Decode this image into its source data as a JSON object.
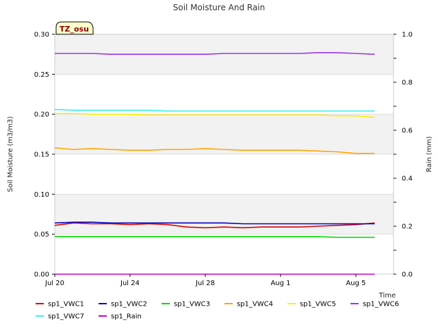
{
  "chart_data": {
    "type": "line",
    "title": "Soil Moisture And Rain",
    "badge": "TZ_osu",
    "xlabel": "Time",
    "ylabel": "Soil Moisture (m3/m3)",
    "y2label": "Rain (mm)",
    "xlim": [
      "2023-07-20",
      "2023-08-07"
    ],
    "ylim": [
      0.0,
      0.3
    ],
    "y2lim": [
      0.0,
      1.0
    ],
    "x_ticks": [
      {
        "date": "2023-07-20",
        "label": "Jul 20"
      },
      {
        "date": "2023-07-24",
        "label": "Jul 24"
      },
      {
        "date": "2023-07-28",
        "label": "Jul 28"
      },
      {
        "date": "2023-08-01",
        "label": "Aug 1"
      },
      {
        "date": "2023-08-05",
        "label": "Aug 5"
      }
    ],
    "y_ticks": [
      "0.00",
      "0.05",
      "0.10",
      "0.15",
      "0.20",
      "0.25",
      "0.30"
    ],
    "y2_ticks": [
      "0.0",
      "0.2",
      "0.4",
      "0.6",
      "0.8",
      "1.0"
    ],
    "grid": true,
    "legend_position": "bottom",
    "x": [
      "2023-07-20",
      "2023-07-21",
      "2023-07-22",
      "2023-07-23",
      "2023-07-24",
      "2023-07-25",
      "2023-07-26",
      "2023-07-27",
      "2023-07-28",
      "2023-07-29",
      "2023-07-30",
      "2023-07-31",
      "2023-08-01",
      "2023-08-02",
      "2023-08-03",
      "2023-08-04",
      "2023-08-05",
      "2023-08-06"
    ],
    "series": [
      {
        "name": "sp1_VWC1",
        "color": "#dd0000",
        "axis": "left",
        "values": [
          0.061,
          0.064,
          0.063,
          0.063,
          0.062,
          0.063,
          0.062,
          0.059,
          0.058,
          0.059,
          0.058,
          0.059,
          0.059,
          0.059,
          0.06,
          0.061,
          0.062,
          0.064
        ]
      },
      {
        "name": "sp1_VWC2",
        "color": "#0000cc",
        "axis": "left",
        "values": [
          0.064,
          0.065,
          0.065,
          0.064,
          0.064,
          0.064,
          0.064,
          0.064,
          0.064,
          0.064,
          0.063,
          0.063,
          0.063,
          0.063,
          0.063,
          0.063,
          0.063,
          0.063
        ]
      },
      {
        "name": "sp1_VWC3",
        "color": "#00dd00",
        "axis": "left",
        "values": [
          0.047,
          0.047,
          0.047,
          0.047,
          0.047,
          0.047,
          0.047,
          0.047,
          0.047,
          0.047,
          0.047,
          0.047,
          0.047,
          0.047,
          0.047,
          0.046,
          0.046,
          0.046
        ]
      },
      {
        "name": "sp1_VWC4",
        "color": "#ffa500",
        "axis": "left",
        "values": [
          0.158,
          0.156,
          0.157,
          0.156,
          0.155,
          0.155,
          0.156,
          0.156,
          0.157,
          0.156,
          0.155,
          0.155,
          0.155,
          0.155,
          0.154,
          0.153,
          0.151,
          0.151
        ]
      },
      {
        "name": "sp1_VWC5",
        "color": "#ffee00",
        "axis": "left",
        "values": [
          0.201,
          0.201,
          0.2,
          0.2,
          0.2,
          0.199,
          0.199,
          0.199,
          0.199,
          0.199,
          0.199,
          0.199,
          0.199,
          0.199,
          0.199,
          0.198,
          0.198,
          0.196
        ]
      },
      {
        "name": "sp1_VWC6",
        "color": "#9933ee",
        "axis": "left",
        "values": [
          0.276,
          0.276,
          0.276,
          0.275,
          0.275,
          0.275,
          0.275,
          0.275,
          0.275,
          0.276,
          0.276,
          0.276,
          0.276,
          0.276,
          0.277,
          0.277,
          0.276,
          0.275
        ]
      },
      {
        "name": "sp1_VWC7",
        "color": "#33eeee",
        "axis": "left",
        "values": [
          0.206,
          0.205,
          0.205,
          0.205,
          0.205,
          0.205,
          0.204,
          0.204,
          0.204,
          0.204,
          0.204,
          0.204,
          0.204,
          0.204,
          0.204,
          0.204,
          0.204,
          0.204
        ]
      },
      {
        "name": "sp1_Rain",
        "color": "#cc00cc",
        "axis": "right",
        "values": [
          0,
          0,
          0,
          0,
          0,
          0,
          0,
          0,
          0,
          0,
          0,
          0,
          0,
          0,
          0,
          0,
          0,
          0
        ]
      }
    ]
  }
}
